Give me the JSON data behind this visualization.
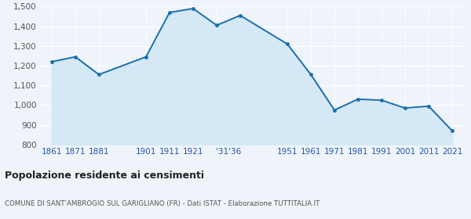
{
  "values": [
    1220,
    1245,
    1155,
    1245,
    1470,
    1490,
    1405,
    1455,
    1310,
    1155,
    975,
    1030,
    1025,
    985,
    995,
    870
  ],
  "x_positions": [
    0,
    1,
    2,
    4,
    5,
    6,
    7,
    8,
    10,
    11,
    12,
    13,
    14,
    15,
    16,
    17
  ],
  "x_tick_positions": [
    0,
    1,
    2,
    4,
    5,
    6,
    7.5,
    10,
    11,
    12,
    13,
    14,
    15,
    16,
    17
  ],
  "x_tick_labels": [
    "1861",
    "1871",
    "1881",
    "1901",
    "1911",
    "1921",
    "'31'36",
    "1951",
    "1961",
    "1971",
    "1981",
    "1991",
    "2001",
    "2011",
    "2021"
  ],
  "ylim": [
    800,
    1500
  ],
  "yticks": [
    800,
    900,
    1000,
    1100,
    1200,
    1300,
    1400,
    1500
  ],
  "ytick_labels": [
    "800",
    "900",
    "1,000",
    "1,100",
    "1,200",
    "1,300",
    "1,400",
    "1,500"
  ],
  "line_color": "#1a6faf",
  "fill_color": "#d5e8f5",
  "marker_color": "#1a6faf",
  "bg_color": "#eef4fa",
  "grid_color": "#ffffff",
  "title": "Popolazione residente ai censimenti",
  "subtitle": "COMUNE DI SANT'AMBROGIO SUL GARIGLIANO (FR) - Dati ISTAT - Elaborazione TUTTITALIA.IT",
  "title_color": "#222222",
  "subtitle_color": "#555555",
  "tick_color": "#2255aa"
}
